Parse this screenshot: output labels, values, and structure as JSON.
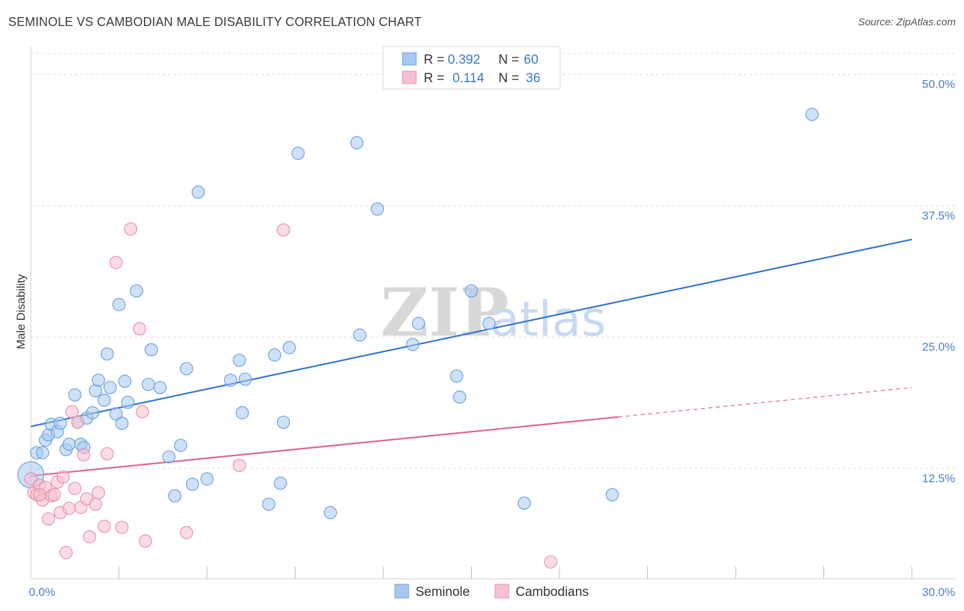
{
  "title": "SEMINOLE VS CAMBODIAN MALE DISABILITY CORRELATION CHART",
  "source": "Source: ZipAtlas.com",
  "watermark": {
    "zip": "ZIP",
    "atlas": "atlas"
  },
  "legend": {
    "rows": [
      {
        "r_label": "R =",
        "r_value": "0.392",
        "n_label": "N =",
        "n_value": "60",
        "color": "#a8c8f0",
        "stroke": "#6a9fe0"
      },
      {
        "r_label": "R =",
        "r_value": "0.114",
        "n_label": "N =",
        "n_value": "36",
        "color": "#f8c0d0",
        "stroke": "#e890aa"
      }
    ]
  },
  "chart_data": {
    "type": "scatter",
    "title": "SEMINOLE VS CAMBODIAN MALE DISABILITY CORRELATION CHART",
    "xlabel": "",
    "ylabel": "Male Disability",
    "xlim": [
      0,
      30
    ],
    "ylim": [
      2,
      52
    ],
    "x_tick_labels": [
      {
        "value": 0,
        "label": "0.0%"
      },
      {
        "value": 30,
        "label": "30.0%"
      }
    ],
    "x_minor_ticks": [
      3,
      6,
      9,
      12,
      15,
      18,
      21,
      24,
      27,
      30
    ],
    "y_ticks": [
      {
        "value": 12.5,
        "label": "12.5%"
      },
      {
        "value": 25.0,
        "label": "25.0%"
      },
      {
        "value": 37.5,
        "label": "37.5%"
      },
      {
        "value": 50.0,
        "label": "50.0%"
      }
    ],
    "grid": "horizontal dashed",
    "legend_position": "top-center",
    "series": [
      {
        "name": "Seminole",
        "color": "#a8c8f0",
        "stroke": "#6a9fe0",
        "line_color": "#2f72d0",
        "trend": {
          "x0": 0,
          "y0": 16.5,
          "x1": 30,
          "y1": 34.3
        },
        "points": [
          [
            0.0,
            11.9,
            "large"
          ],
          [
            0.2,
            14.0
          ],
          [
            0.4,
            14.0
          ],
          [
            0.5,
            15.2
          ],
          [
            0.6,
            15.7
          ],
          [
            0.7,
            16.7
          ],
          [
            0.9,
            16.0
          ],
          [
            1.0,
            16.8
          ],
          [
            1.2,
            14.3
          ],
          [
            1.3,
            14.8
          ],
          [
            1.5,
            19.5
          ],
          [
            1.6,
            16.9
          ],
          [
            1.7,
            14.8
          ],
          [
            1.8,
            14.5
          ],
          [
            1.9,
            17.3
          ],
          [
            2.1,
            17.8
          ],
          [
            2.2,
            19.9
          ],
          [
            2.3,
            20.9
          ],
          [
            2.5,
            19.0
          ],
          [
            2.6,
            23.4
          ],
          [
            2.7,
            20.2
          ],
          [
            2.9,
            17.7
          ],
          [
            3.0,
            28.1
          ],
          [
            3.1,
            16.8
          ],
          [
            3.2,
            20.8
          ],
          [
            3.3,
            18.8
          ],
          [
            3.6,
            29.4
          ],
          [
            4.0,
            20.5
          ],
          [
            4.1,
            23.8
          ],
          [
            4.4,
            20.2
          ],
          [
            4.7,
            13.6
          ],
          [
            4.9,
            9.9
          ],
          [
            5.1,
            14.7
          ],
          [
            5.3,
            22.0
          ],
          [
            5.5,
            11.0
          ],
          [
            6.0,
            11.5
          ],
          [
            5.7,
            38.8
          ],
          [
            6.8,
            20.9
          ],
          [
            7.1,
            22.8
          ],
          [
            7.2,
            17.8
          ],
          [
            7.3,
            21.0
          ],
          [
            8.1,
            9.1
          ],
          [
            8.3,
            23.3
          ],
          [
            8.5,
            11.1
          ],
          [
            8.6,
            16.9
          ],
          [
            8.8,
            24.0
          ],
          [
            9.1,
            42.5
          ],
          [
            10.2,
            8.3
          ],
          [
            11.1,
            43.5
          ],
          [
            11.2,
            25.2
          ],
          [
            11.8,
            37.2
          ],
          [
            13.0,
            24.3
          ],
          [
            13.2,
            26.3
          ],
          [
            14.5,
            21.3
          ],
          [
            14.6,
            19.3
          ],
          [
            15.0,
            29.4
          ],
          [
            15.6,
            26.3
          ],
          [
            16.8,
            9.2
          ],
          [
            19.8,
            10.0
          ],
          [
            26.6,
            46.2
          ]
        ]
      },
      {
        "name": "Cambodians",
        "color": "#f8c0d0",
        "stroke": "#e890aa",
        "line_color": "#e06090",
        "trend": {
          "x0": 0,
          "y0": 11.8,
          "x1": 20,
          "y1": 17.4
        },
        "trend_dashed": {
          "x0": 20,
          "y0": 17.4,
          "x1": 30,
          "y1": 20.2
        },
        "points": [
          [
            0.0,
            11.5
          ],
          [
            0.1,
            10.2
          ],
          [
            0.2,
            10.0
          ],
          [
            0.3,
            10.9
          ],
          [
            0.4,
            9.5
          ],
          [
            0.5,
            10.7
          ],
          [
            0.6,
            7.7
          ],
          [
            0.7,
            9.9
          ],
          [
            0.8,
            10.0
          ],
          [
            0.9,
            11.2
          ],
          [
            1.0,
            8.3
          ],
          [
            1.1,
            11.7
          ],
          [
            1.2,
            4.5
          ],
          [
            1.3,
            8.7
          ],
          [
            1.4,
            17.9
          ],
          [
            1.5,
            10.6
          ],
          [
            1.6,
            16.9
          ],
          [
            1.7,
            8.8
          ],
          [
            1.8,
            13.8
          ],
          [
            1.9,
            9.6
          ],
          [
            2.0,
            6.0
          ],
          [
            2.2,
            9.1
          ],
          [
            2.3,
            10.2
          ],
          [
            2.5,
            7.0
          ],
          [
            2.6,
            13.9
          ],
          [
            2.9,
            32.1
          ],
          [
            3.1,
            6.9
          ],
          [
            3.4,
            35.3
          ],
          [
            3.7,
            25.8
          ],
          [
            3.8,
            17.9
          ],
          [
            3.9,
            5.6
          ],
          [
            5.3,
            6.4
          ],
          [
            7.1,
            12.8
          ],
          [
            8.6,
            35.2
          ],
          [
            17.7,
            3.6
          ],
          [
            0.3,
            10.0
          ]
        ]
      }
    ]
  },
  "bottom_legend": [
    {
      "label": "Seminole",
      "color": "#a8c8f0",
      "stroke": "#6a9fe0"
    },
    {
      "label": "Cambodians",
      "color": "#f8c0d0",
      "stroke": "#e890aa"
    }
  ]
}
